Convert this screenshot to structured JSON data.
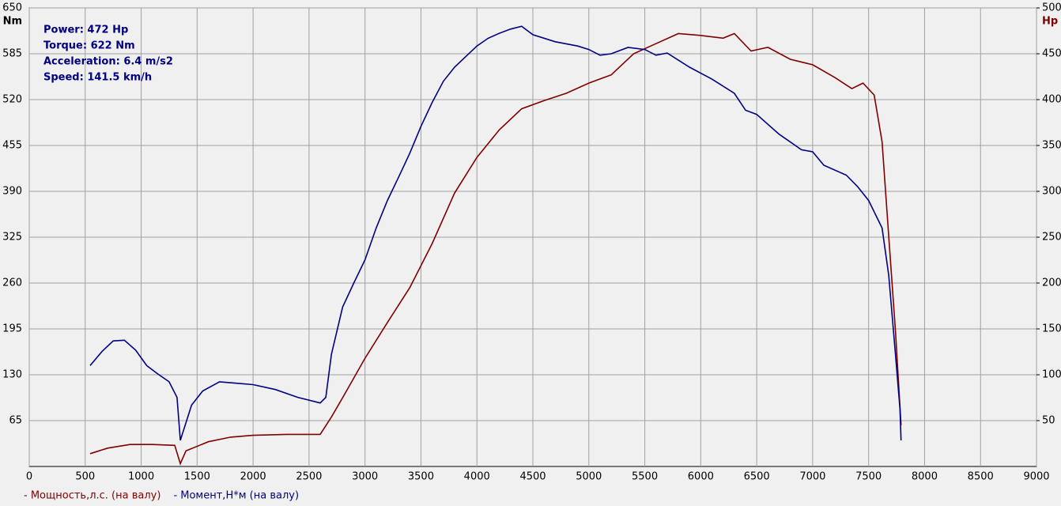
{
  "chart_data": {
    "type": "line",
    "annotations": [
      "Power: 472 Hp",
      "Torque: 622 Nm",
      "Acceleration: 6.4 m/s2",
      "Speed: 141.5 km/h"
    ],
    "y_unit": "Nm",
    "y2_unit": "Hp",
    "xlim": [
      0,
      9000
    ],
    "xticks": [
      0,
      500,
      1000,
      1500,
      2000,
      2500,
      3000,
      3500,
      4000,
      4500,
      5000,
      5500,
      6000,
      6500,
      7000,
      7500,
      8000,
      8500,
      9000
    ],
    "ylim": [
      0,
      650
    ],
    "yticks": [
      65,
      130,
      195,
      260,
      325,
      390,
      455,
      520,
      585,
      650
    ],
    "y2lim": [
      0,
      500
    ],
    "y2ticks": [
      50,
      100,
      150,
      200,
      250,
      300,
      350,
      400,
      450,
      500
    ],
    "grid": true,
    "legend": "bottom-left",
    "series": [
      {
        "name": "- Мощность,л.с. (на валу)",
        "color": "#800000",
        "axis": "y2",
        "x": [
          544,
          700,
          900,
          1100,
          1300,
          1350,
          1400,
          1600,
          1800,
          2000,
          2300,
          2600,
          2700,
          2800,
          3000,
          3200,
          3400,
          3600,
          3800,
          4000,
          4200,
          4400,
          4600,
          4800,
          5000,
          5200,
          5400,
          5600,
          5800,
          6000,
          6200,
          6300,
          6450,
          6600,
          6800,
          7000,
          7200,
          7350,
          7450,
          7550,
          7620,
          7680,
          7740,
          7790
        ],
        "values": [
          14,
          20,
          24,
          24,
          23,
          3,
          17,
          27,
          32,
          34,
          35,
          35,
          54,
          75,
          118,
          157,
          195,
          243,
          298,
          337,
          367,
          390,
          399,
          407,
          418,
          427,
          450,
          461,
          472,
          470,
          467,
          472,
          453,
          457,
          444,
          438,
          424,
          412,
          418,
          405,
          354,
          251,
          148,
          45
        ]
      },
      {
        "name": "- Момент,Н*м (на валу)",
        "color": "#000080",
        "x": [
          544,
          650,
          750,
          850,
          950,
          1050,
          1150,
          1250,
          1320,
          1350,
          1450,
          1550,
          1700,
          1850,
          2000,
          2200,
          2400,
          2600,
          2650,
          2700,
          2800,
          2900,
          3000,
          3100,
          3200,
          3300,
          3400,
          3500,
          3600,
          3700,
          3800,
          3900,
          4000,
          4100,
          4200,
          4300,
          4400,
          4500,
          4700,
          4900,
          5000,
          5100,
          5200,
          5350,
          5500,
          5600,
          5700,
          5900,
          6100,
          6300,
          6400,
          6500,
          6700,
          6900,
          7000,
          7100,
          7300,
          7400,
          7500,
          7620,
          7680,
          7740,
          7780,
          7790
        ],
        "values": [
          143,
          163,
          178,
          179,
          165,
          143,
          131,
          120,
          98,
          37,
          87,
          107,
          120,
          118,
          116,
          109,
          98,
          90,
          98,
          159,
          226,
          260,
          293,
          338,
          377,
          410,
          444,
          482,
          516,
          546,
          566,
          581,
          596,
          607,
          614,
          620,
          624,
          612,
          602,
          596,
          591,
          583,
          585,
          594,
          591,
          583,
          586,
          566,
          549,
          529,
          505,
          499,
          471,
          449,
          446,
          427,
          413,
          397,
          377,
          338,
          271,
          159,
          82,
          37
        ]
      }
    ]
  }
}
